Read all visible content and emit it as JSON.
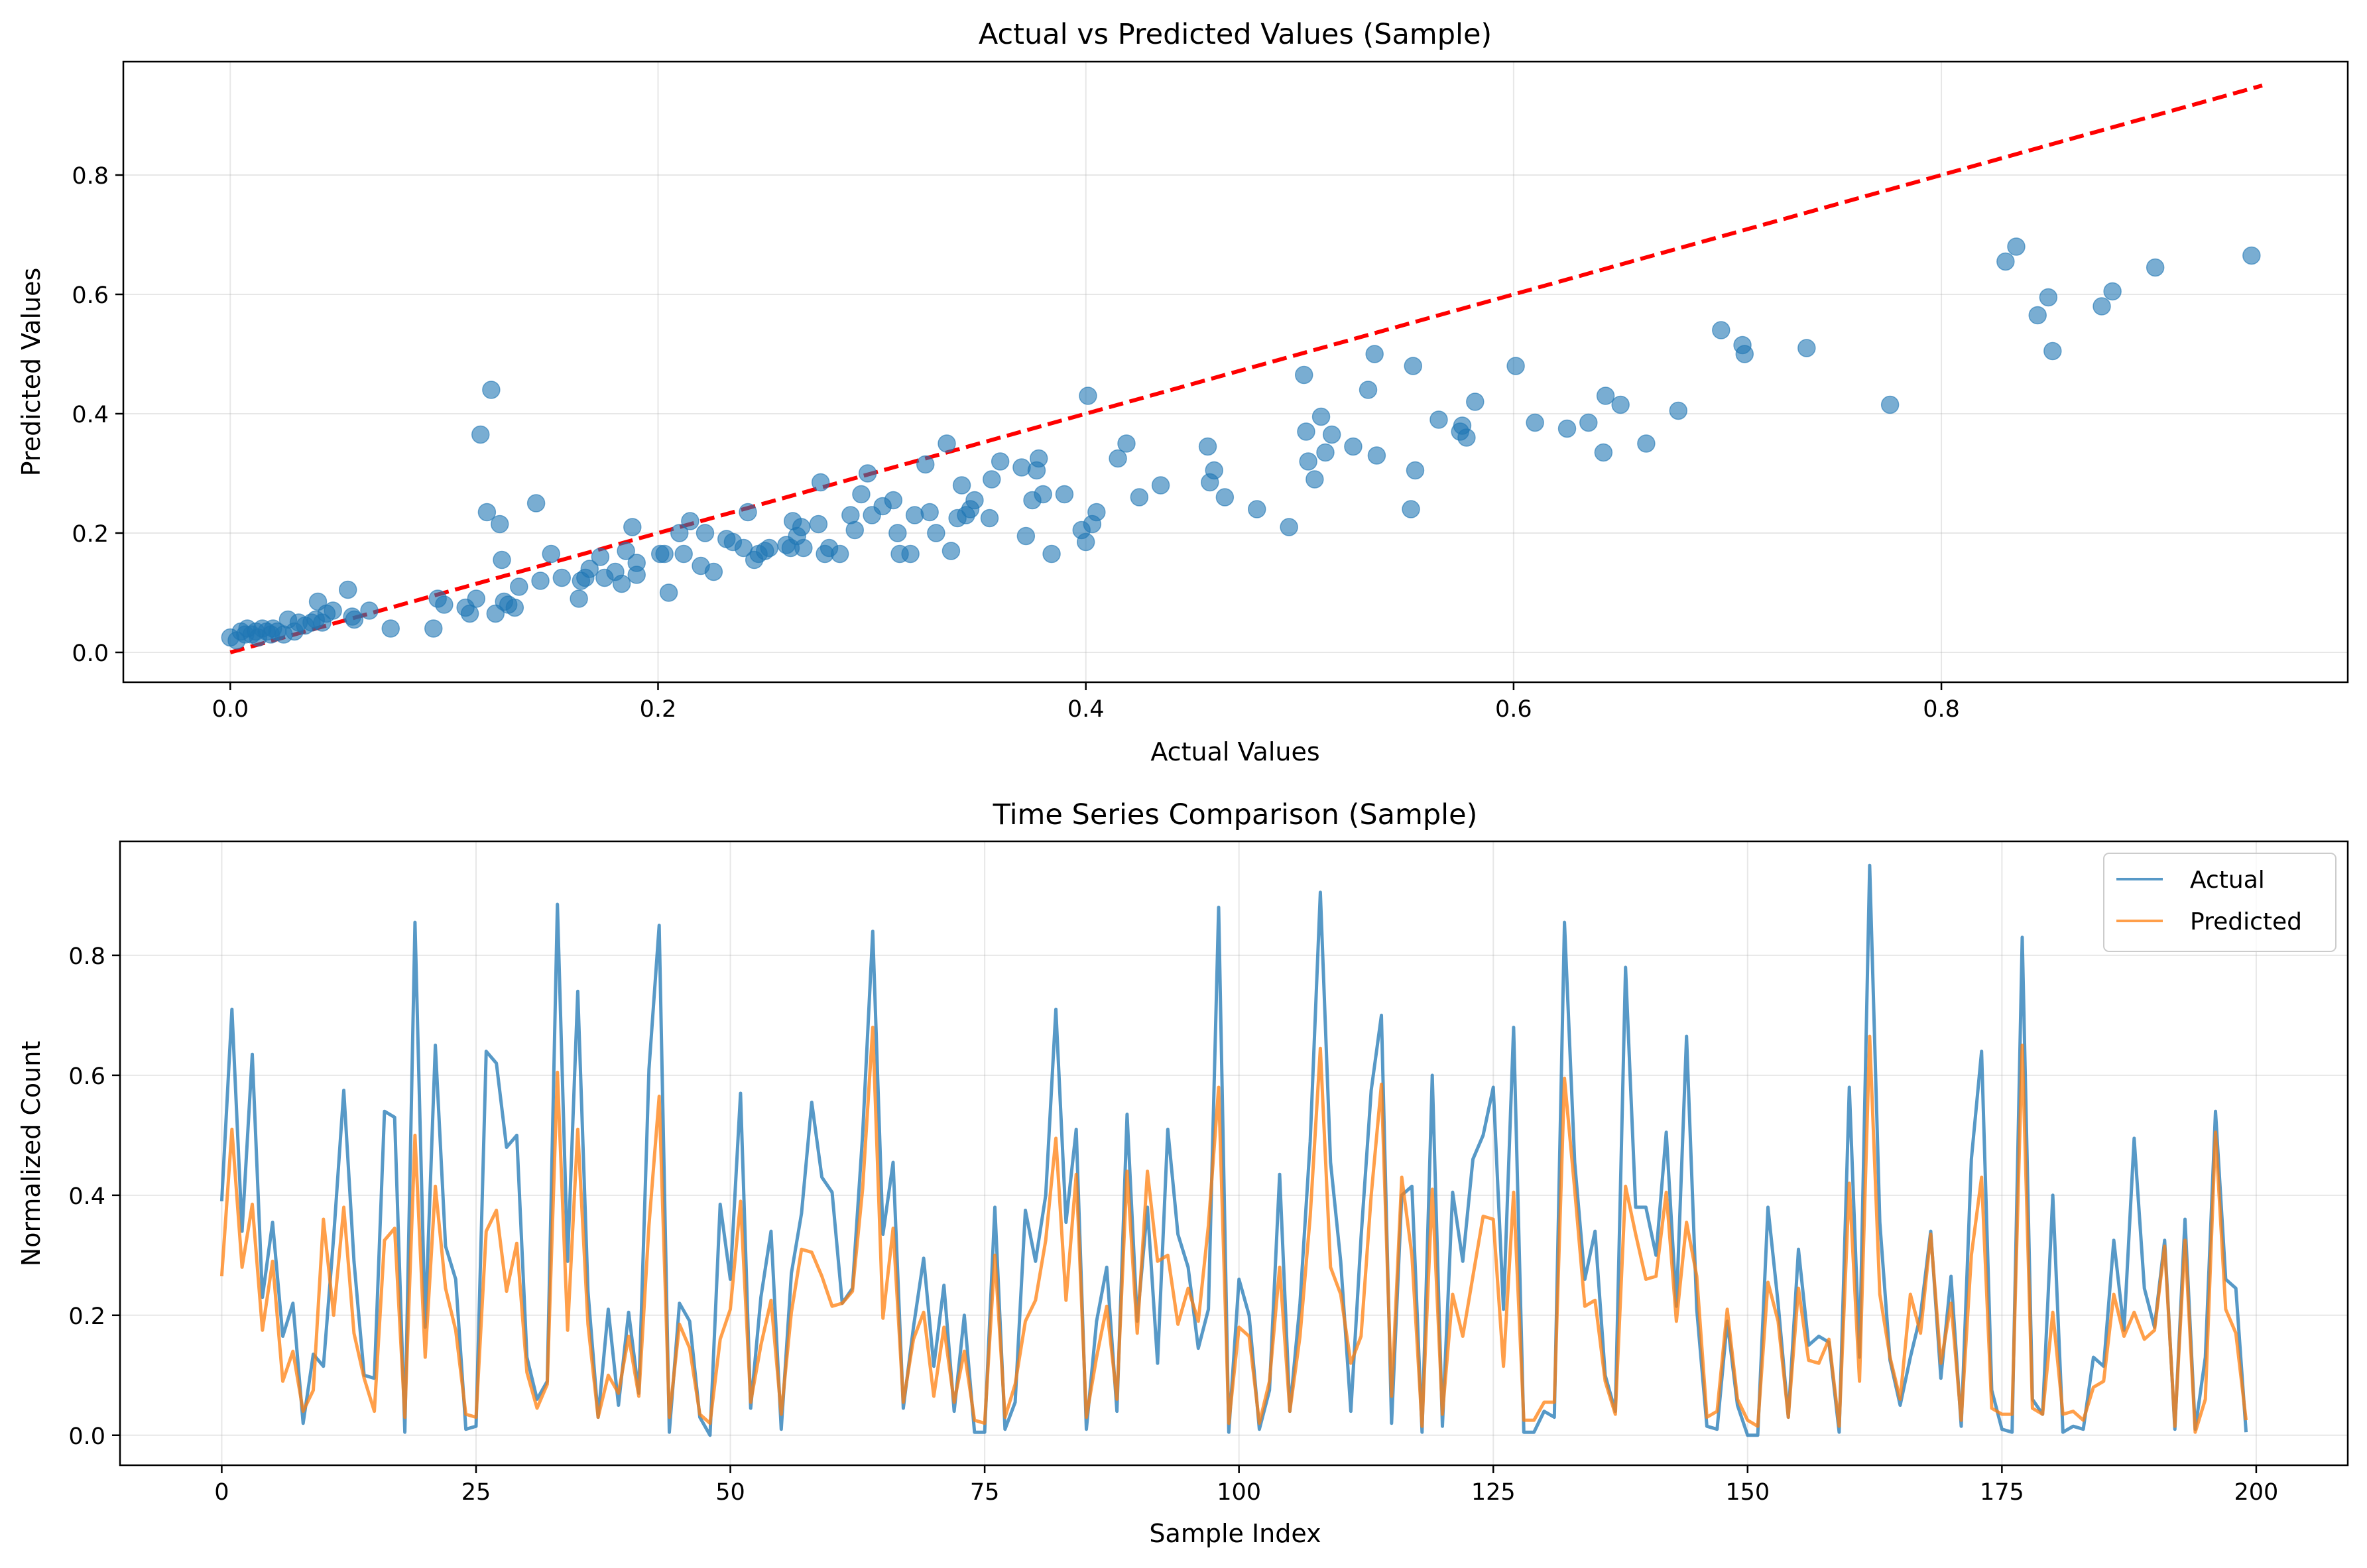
{
  "chart_data": [
    {
      "type": "scatter",
      "title": "Actual vs Predicted Values (Sample)",
      "xlabel": "Actual Values",
      "ylabel": "Predicted Values",
      "xlim": [
        -0.05,
        0.99
      ],
      "ylim": [
        -0.05,
        0.99
      ],
      "xticks": [
        0.0,
        0.2,
        0.4,
        0.6,
        0.8
      ],
      "yticks": [
        0.0,
        0.2,
        0.4,
        0.6,
        0.8
      ],
      "grid": true,
      "point_color": "#1f77b4",
      "reference_line": {
        "style": "dashed",
        "color": "#ff0000",
        "x": [
          0.0,
          0.95
        ],
        "y": [
          0.0,
          0.95
        ]
      },
      "points": [
        [
          0.0,
          0.025
        ],
        [
          0.003,
          0.02
        ],
        [
          0.005,
          0.035
        ],
        [
          0.007,
          0.03
        ],
        [
          0.008,
          0.04
        ],
        [
          0.01,
          0.03
        ],
        [
          0.012,
          0.035
        ],
        [
          0.013,
          0.025
        ],
        [
          0.015,
          0.04
        ],
        [
          0.017,
          0.035
        ],
        [
          0.019,
          0.03
        ],
        [
          0.02,
          0.04
        ],
        [
          0.022,
          0.035
        ],
        [
          0.025,
          0.03
        ],
        [
          0.027,
          0.055
        ],
        [
          0.03,
          0.035
        ],
        [
          0.032,
          0.05
        ],
        [
          0.035,
          0.045
        ],
        [
          0.038,
          0.05
        ],
        [
          0.04,
          0.055
        ],
        [
          0.041,
          0.085
        ],
        [
          0.043,
          0.05
        ],
        [
          0.045,
          0.065
        ],
        [
          0.048,
          0.07
        ],
        [
          0.055,
          0.105
        ],
        [
          0.057,
          0.06
        ],
        [
          0.058,
          0.055
        ],
        [
          0.065,
          0.07
        ],
        [
          0.075,
          0.04
        ],
        [
          0.095,
          0.04
        ],
        [
          0.097,
          0.09
        ],
        [
          0.1,
          0.08
        ],
        [
          0.11,
          0.075
        ],
        [
          0.112,
          0.065
        ],
        [
          0.115,
          0.09
        ],
        [
          0.117,
          0.365
        ],
        [
          0.12,
          0.235
        ],
        [
          0.122,
          0.44
        ],
        [
          0.124,
          0.065
        ],
        [
          0.126,
          0.215
        ],
        [
          0.127,
          0.155
        ],
        [
          0.128,
          0.085
        ],
        [
          0.13,
          0.08
        ],
        [
          0.133,
          0.075
        ],
        [
          0.135,
          0.11
        ],
        [
          0.143,
          0.25
        ],
        [
          0.145,
          0.12
        ],
        [
          0.15,
          0.165
        ],
        [
          0.155,
          0.125
        ],
        [
          0.163,
          0.09
        ],
        [
          0.164,
          0.12
        ],
        [
          0.166,
          0.125
        ],
        [
          0.168,
          0.14
        ],
        [
          0.173,
          0.16
        ],
        [
          0.175,
          0.125
        ],
        [
          0.18,
          0.135
        ],
        [
          0.183,
          0.115
        ],
        [
          0.185,
          0.17
        ],
        [
          0.188,
          0.21
        ],
        [
          0.19,
          0.15
        ],
        [
          0.19,
          0.13
        ],
        [
          0.201,
          0.165
        ],
        [
          0.203,
          0.165
        ],
        [
          0.205,
          0.1
        ],
        [
          0.21,
          0.2
        ],
        [
          0.212,
          0.165
        ],
        [
          0.215,
          0.22
        ],
        [
          0.22,
          0.145
        ],
        [
          0.222,
          0.2
        ],
        [
          0.226,
          0.135
        ],
        [
          0.232,
          0.19
        ],
        [
          0.235,
          0.185
        ],
        [
          0.24,
          0.175
        ],
        [
          0.242,
          0.235
        ],
        [
          0.245,
          0.155
        ],
        [
          0.247,
          0.165
        ],
        [
          0.25,
          0.17
        ],
        [
          0.252,
          0.175
        ],
        [
          0.26,
          0.18
        ],
        [
          0.262,
          0.175
        ],
        [
          0.263,
          0.22
        ],
        [
          0.265,
          0.195
        ],
        [
          0.267,
          0.21
        ],
        [
          0.268,
          0.175
        ],
        [
          0.275,
          0.215
        ],
        [
          0.276,
          0.285
        ],
        [
          0.278,
          0.165
        ],
        [
          0.28,
          0.175
        ],
        [
          0.285,
          0.165
        ],
        [
          0.29,
          0.23
        ],
        [
          0.292,
          0.205
        ],
        [
          0.295,
          0.265
        ],
        [
          0.298,
          0.3
        ],
        [
          0.3,
          0.23
        ],
        [
          0.305,
          0.245
        ],
        [
          0.31,
          0.255
        ],
        [
          0.312,
          0.2
        ],
        [
          0.313,
          0.165
        ],
        [
          0.318,
          0.165
        ],
        [
          0.32,
          0.23
        ],
        [
          0.325,
          0.315
        ],
        [
          0.327,
          0.235
        ],
        [
          0.33,
          0.2
        ],
        [
          0.335,
          0.35
        ],
        [
          0.337,
          0.17
        ],
        [
          0.34,
          0.225
        ],
        [
          0.342,
          0.28
        ],
        [
          0.344,
          0.23
        ],
        [
          0.346,
          0.24
        ],
        [
          0.348,
          0.255
        ],
        [
          0.355,
          0.225
        ],
        [
          0.356,
          0.29
        ],
        [
          0.36,
          0.32
        ],
        [
          0.37,
          0.31
        ],
        [
          0.372,
          0.195
        ],
        [
          0.375,
          0.255
        ],
        [
          0.377,
          0.305
        ],
        [
          0.378,
          0.325
        ],
        [
          0.38,
          0.265
        ],
        [
          0.384,
          0.165
        ],
        [
          0.39,
          0.265
        ],
        [
          0.398,
          0.205
        ],
        [
          0.4,
          0.185
        ],
        [
          0.401,
          0.43
        ],
        [
          0.403,
          0.215
        ],
        [
          0.405,
          0.235
        ],
        [
          0.415,
          0.325
        ],
        [
          0.419,
          0.35
        ],
        [
          0.425,
          0.26
        ],
        [
          0.435,
          0.28
        ],
        [
          0.457,
          0.345
        ],
        [
          0.458,
          0.285
        ],
        [
          0.46,
          0.305
        ],
        [
          0.465,
          0.26
        ],
        [
          0.48,
          0.24
        ],
        [
          0.495,
          0.21
        ],
        [
          0.502,
          0.465
        ],
        [
          0.503,
          0.37
        ],
        [
          0.504,
          0.32
        ],
        [
          0.507,
          0.29
        ],
        [
          0.51,
          0.395
        ],
        [
          0.512,
          0.335
        ],
        [
          0.515,
          0.365
        ],
        [
          0.525,
          0.345
        ],
        [
          0.532,
          0.44
        ],
        [
          0.535,
          0.5
        ],
        [
          0.536,
          0.33
        ],
        [
          0.552,
          0.24
        ],
        [
          0.553,
          0.48
        ],
        [
          0.554,
          0.305
        ],
        [
          0.565,
          0.39
        ],
        [
          0.575,
          0.37
        ],
        [
          0.576,
          0.38
        ],
        [
          0.578,
          0.36
        ],
        [
          0.582,
          0.42
        ],
        [
          0.601,
          0.48
        ],
        [
          0.61,
          0.385
        ],
        [
          0.625,
          0.375
        ],
        [
          0.635,
          0.385
        ],
        [
          0.642,
          0.335
        ],
        [
          0.643,
          0.43
        ],
        [
          0.65,
          0.415
        ],
        [
          0.662,
          0.35
        ],
        [
          0.677,
          0.405
        ],
        [
          0.697,
          0.54
        ],
        [
          0.707,
          0.515
        ],
        [
          0.708,
          0.5
        ],
        [
          0.737,
          0.51
        ],
        [
          0.776,
          0.415
        ],
        [
          0.83,
          0.655
        ],
        [
          0.835,
          0.68
        ],
        [
          0.845,
          0.565
        ],
        [
          0.85,
          0.595
        ],
        [
          0.852,
          0.505
        ],
        [
          0.875,
          0.58
        ],
        [
          0.88,
          0.605
        ],
        [
          0.9,
          0.645
        ],
        [
          0.945,
          0.665
        ]
      ]
    },
    {
      "type": "line",
      "title": "Time Series Comparison (Sample)",
      "xlabel": "Sample Index",
      "ylabel": "Normalized Count",
      "xlim": [
        -10,
        209
      ],
      "ylim": [
        -0.05,
        0.99
      ],
      "xticks": [
        0,
        25,
        50,
        75,
        100,
        125,
        150,
        175,
        200
      ],
      "yticks": [
        0.0,
        0.2,
        0.4,
        0.6,
        0.8
      ],
      "grid": true,
      "legend_position": "top-right",
      "series": [
        {
          "name": "Actual",
          "color": "#1f77b4",
          "values": [
            0.39,
            0.71,
            0.34,
            0.635,
            0.23,
            0.355,
            0.165,
            0.22,
            0.02,
            0.135,
            0.115,
            0.33,
            0.575,
            0.29,
            0.1,
            0.095,
            0.54,
            0.53,
            0.005,
            0.855,
            0.18,
            0.65,
            0.315,
            0.26,
            0.01,
            0.015,
            0.64,
            0.62,
            0.48,
            0.5,
            0.13,
            0.06,
            0.09,
            0.885,
            0.29,
            0.74,
            0.24,
            0.03,
            0.21,
            0.05,
            0.205,
            0.07,
            0.61,
            0.85,
            0.005,
            0.22,
            0.19,
            0.03,
            0.0,
            0.385,
            0.26,
            0.57,
            0.045,
            0.23,
            0.34,
            0.01,
            0.27,
            0.37,
            0.555,
            0.43,
            0.405,
            0.22,
            0.245,
            0.5,
            0.84,
            0.335,
            0.455,
            0.045,
            0.18,
            0.295,
            0.115,
            0.25,
            0.04,
            0.2,
            0.005,
            0.005,
            0.38,
            0.01,
            0.055,
            0.375,
            0.29,
            0.4,
            0.71,
            0.355,
            0.51,
            0.01,
            0.19,
            0.28,
            0.04,
            0.535,
            0.19,
            0.38,
            0.12,
            0.51,
            0.335,
            0.28,
            0.145,
            0.21,
            0.88,
            0.005,
            0.26,
            0.2,
            0.01,
            0.075,
            0.435,
            0.04,
            0.22,
            0.49,
            0.905,
            0.455,
            0.29,
            0.04,
            0.33,
            0.575,
            0.7,
            0.02,
            0.4,
            0.415,
            0.005,
            0.6,
            0.015,
            0.405,
            0.29,
            0.46,
            0.5,
            0.58,
            0.21,
            0.68,
            0.005,
            0.005,
            0.04,
            0.03,
            0.855,
            0.455,
            0.26,
            0.34,
            0.1,
            0.04,
            0.78,
            0.38,
            0.38,
            0.3,
            0.505,
            0.215,
            0.665,
            0.21,
            0.015,
            0.01,
            0.19,
            0.05,
            0.0,
            0.0,
            0.38,
            0.22,
            0.03,
            0.31,
            0.15,
            0.165,
            0.155,
            0.005,
            0.58,
            0.13,
            0.95,
            0.355,
            0.125,
            0.05,
            0.13,
            0.2,
            0.34,
            0.095,
            0.265,
            0.015,
            0.46,
            0.64,
            0.075,
            0.01,
            0.005,
            0.83,
            0.06,
            0.035,
            0.4,
            0.005,
            0.015,
            0.01,
            0.13,
            0.115,
            0.325,
            0.175,
            0.495,
            0.245,
            0.18,
            0.325,
            0.01,
            0.36,
            0.01,
            0.13,
            0.54,
            0.26,
            0.245,
            0.005
          ],
          "note_markers": []
        },
        {
          "name": "Predicted",
          "color": "#ff7f0e",
          "values": [
            0.265,
            0.51,
            0.28,
            0.385,
            0.175,
            0.29,
            0.09,
            0.14,
            0.04,
            0.075,
            0.36,
            0.2,
            0.38,
            0.17,
            0.095,
            0.04,
            0.325,
            0.345,
            0.03,
            0.5,
            0.13,
            0.415,
            0.245,
            0.175,
            0.035,
            0.03,
            0.34,
            0.375,
            0.24,
            0.32,
            0.105,
            0.045,
            0.085,
            0.605,
            0.175,
            0.51,
            0.185,
            0.03,
            0.1,
            0.07,
            0.165,
            0.065,
            0.35,
            0.565,
            0.03,
            0.185,
            0.145,
            0.035,
            0.02,
            0.16,
            0.21,
            0.39,
            0.055,
            0.15,
            0.225,
            0.035,
            0.205,
            0.31,
            0.305,
            0.265,
            0.215,
            0.22,
            0.24,
            0.41,
            0.68,
            0.195,
            0.345,
            0.055,
            0.16,
            0.205,
            0.065,
            0.18,
            0.055,
            0.14,
            0.025,
            0.02,
            0.3,
            0.03,
            0.085,
            0.19,
            0.225,
            0.325,
            0.495,
            0.225,
            0.435,
            0.03,
            0.13,
            0.215,
            0.06,
            0.44,
            0.17,
            0.44,
            0.29,
            0.3,
            0.185,
            0.245,
            0.19,
            0.35,
            0.58,
            0.02,
            0.18,
            0.165,
            0.02,
            0.09,
            0.28,
            0.04,
            0.165,
            0.365,
            0.645,
            0.28,
            0.235,
            0.12,
            0.165,
            0.4,
            0.585,
            0.065,
            0.43,
            0.3,
            0.015,
            0.41,
            0.035,
            0.235,
            0.165,
            0.265,
            0.365,
            0.36,
            0.115,
            0.405,
            0.025,
            0.025,
            0.055,
            0.055,
            0.595,
            0.41,
            0.215,
            0.225,
            0.09,
            0.035,
            0.415,
            0.335,
            0.26,
            0.265,
            0.405,
            0.19,
            0.355,
            0.265,
            0.03,
            0.04,
            0.21,
            0.06,
            0.025,
            0.015,
            0.255,
            0.19,
            0.03,
            0.245,
            0.125,
            0.12,
            0.16,
            0.015,
            0.42,
            0.09,
            0.665,
            0.235,
            0.13,
            0.06,
            0.235,
            0.17,
            0.335,
            0.12,
            0.22,
            0.025,
            0.3,
            0.43,
            0.045,
            0.035,
            0.035,
            0.65,
            0.045,
            0.035,
            0.205,
            0.035,
            0.04,
            0.025,
            0.08,
            0.09,
            0.235,
            0.165,
            0.205,
            0.16,
            0.175,
            0.315,
            0.015,
            0.325,
            0.005,
            0.06,
            0.505,
            0.21,
            0.17,
            0.025
          ]
        }
      ]
    }
  ]
}
